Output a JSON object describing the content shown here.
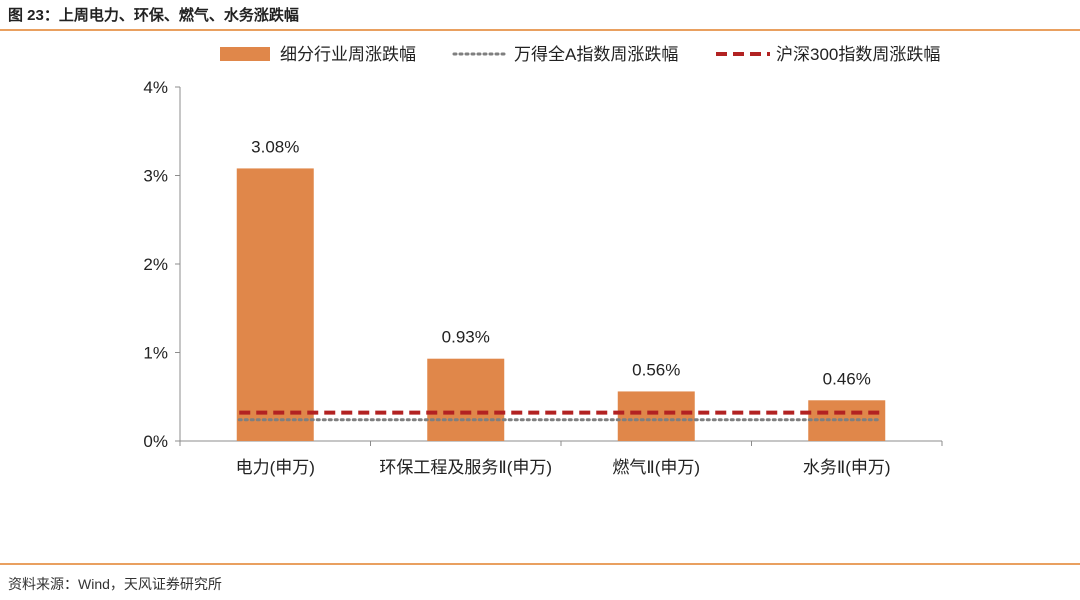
{
  "figure_title": "图 23：上周电力、环保、燃气、水务涨跌幅",
  "source": "资料来源：Wind，天风证券研究所",
  "colors": {
    "bar": "#e0874a",
    "wind_a": "#7f7f7f",
    "csi300": "#b22222",
    "rule": "#e9a060"
  },
  "chart_data": {
    "type": "bar",
    "categories": [
      "电力(申万)",
      "环保工程及服务Ⅱ(申万)",
      "燃气Ⅱ(申万)",
      "水务Ⅱ(申万)"
    ],
    "series": [
      {
        "name": "细分行业周涨跌幅",
        "kind": "bar",
        "values": [
          3.08,
          0.93,
          0.56,
          0.46
        ],
        "labels": [
          "3.08%",
          "0.93%",
          "0.56%",
          "0.46%"
        ]
      },
      {
        "name": "万得全A指数周涨跌幅",
        "kind": "dotted-line",
        "value": 0.24
      },
      {
        "name": "沪深300指数周涨跌幅",
        "kind": "dashed-line",
        "value": 0.32
      }
    ],
    "yticks": [
      "0%",
      "1%",
      "2%",
      "3%",
      "4%"
    ],
    "ylim": [
      0,
      4
    ],
    "legend": "top",
    "grid": false
  }
}
